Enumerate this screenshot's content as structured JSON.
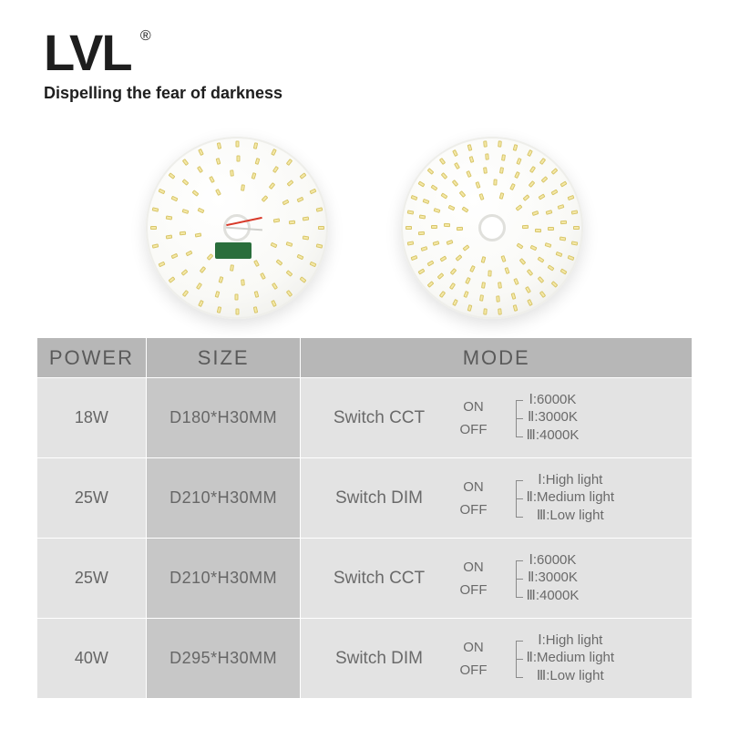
{
  "brand": {
    "name": "LVL",
    "registered": "®",
    "tagline": "Dispelling the fear of darkness"
  },
  "colors": {
    "background": "#ffffff",
    "header_grey_dark": "#b7b7b7",
    "cell_light": "#e3e3e3",
    "cell_mid": "#c7c7c7",
    "text_grey": "#6a6a6a",
    "brand_black": "#1e1e1e",
    "led_fill": "#f5e9a8",
    "driver_green": "#2a6e3c",
    "wire_red": "#d83a2a"
  },
  "table": {
    "headers": {
      "power": "POWER",
      "size": "SIZE",
      "mode": "MODE"
    },
    "switch_labels": {
      "on": "ON",
      "off": "OFF"
    },
    "level_prefix": {
      "one": "Ⅰ:",
      "two": "Ⅱ:",
      "three": "Ⅲ:"
    },
    "cct_levels": {
      "one": "6000K",
      "two": "3000K",
      "three": "4000K"
    },
    "dim_levels": {
      "one": "High light",
      "two": "Medium light",
      "three": "Low light"
    },
    "rows": [
      {
        "power": "18W",
        "size": "D180*H30MM",
        "mode_label": "Switch CCT",
        "mode_type": "cct"
      },
      {
        "power": "25W",
        "size": "D210*H30MM",
        "mode_label": "Switch DIM",
        "mode_type": "dim"
      },
      {
        "power": "25W",
        "size": "D210*H30MM",
        "mode_label": "Switch CCT",
        "mode_type": "cct"
      },
      {
        "power": "40W",
        "size": "D295*H30MM",
        "mode_label": "Switch DIM",
        "mode_type": "dim"
      }
    ]
  },
  "products": {
    "left": {
      "led_rings": [
        22,
        70,
        12
      ],
      "has_visible_driver": true
    },
    "right": {
      "led_rings": [
        36,
        30,
        24,
        18,
        10
      ],
      "denser": true
    }
  }
}
